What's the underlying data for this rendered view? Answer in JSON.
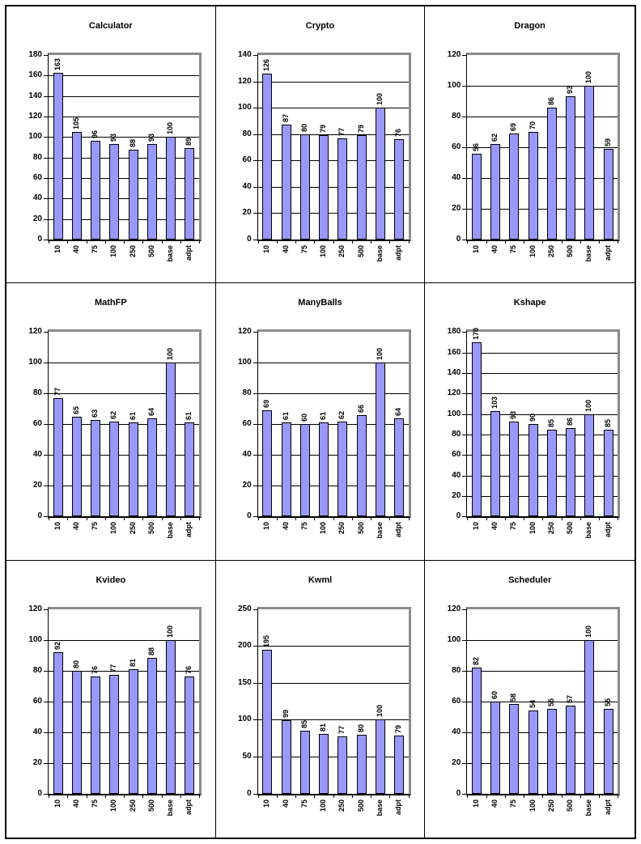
{
  "page": {
    "background": "#ffffff",
    "outer_border": "#000000"
  },
  "colors": {
    "bar_fill": "#9999FC",
    "bar_border": "#000000",
    "gridline": "#000000",
    "axis": "#000000",
    "plot_frame_shadow": "#8c8c8c",
    "text": "#000000"
  },
  "chart_data": [
    {
      "type": "bar",
      "title": "Calculator",
      "categories": [
        "10",
        "40",
        "75",
        "100",
        "250",
        "500",
        "base",
        "adpt"
      ],
      "values": [
        163,
        105,
        96,
        93,
        88,
        93,
        100,
        89
      ],
      "ymax": 180,
      "ystep": 20,
      "yticks": [
        0,
        20,
        40,
        60,
        80,
        100,
        120,
        140,
        160,
        180
      ],
      "grid": true,
      "legend": false
    },
    {
      "type": "bar",
      "title": "Crypto",
      "categories": [
        "10",
        "40",
        "75",
        "100",
        "250",
        "500",
        "base",
        "adpt"
      ],
      "values": [
        126,
        87,
        80,
        79,
        77,
        79,
        100,
        76
      ],
      "ymax": 140,
      "ystep": 20,
      "yticks": [
        0,
        20,
        40,
        60,
        80,
        100,
        120,
        140
      ],
      "grid": true,
      "legend": false
    },
    {
      "type": "bar",
      "title": "Dragon",
      "categories": [
        "10",
        "40",
        "75",
        "100",
        "250",
        "500",
        "base",
        "adpt"
      ],
      "values": [
        56,
        62,
        69,
        70,
        86,
        93,
        100,
        59
      ],
      "ymax": 120,
      "ystep": 20,
      "yticks": [
        0,
        20,
        40,
        60,
        80,
        100,
        120
      ],
      "grid": true,
      "legend": false
    },
    {
      "type": "bar",
      "title": "MathFP",
      "categories": [
        "10",
        "40",
        "75",
        "100",
        "250",
        "500",
        "base",
        "adpt"
      ],
      "values": [
        77,
        65,
        63,
        62,
        61,
        64,
        100,
        61
      ],
      "ymax": 120,
      "ystep": 20,
      "yticks": [
        0,
        20,
        40,
        60,
        80,
        100,
        120
      ],
      "grid": true,
      "legend": false
    },
    {
      "type": "bar",
      "title": "ManyBalls",
      "categories": [
        "10",
        "40",
        "75",
        "100",
        "250",
        "500",
        "base",
        "adpt"
      ],
      "values": [
        69,
        61,
        60,
        61,
        62,
        66,
        100,
        64
      ],
      "ymax": 120,
      "ystep": 20,
      "yticks": [
        0,
        20,
        40,
        60,
        80,
        100,
        120
      ],
      "grid": true,
      "legend": false
    },
    {
      "type": "bar",
      "title": "Kshape",
      "categories": [
        "10",
        "40",
        "75",
        "100",
        "250",
        "500",
        "base",
        "adpt"
      ],
      "values": [
        170,
        103,
        93,
        90,
        85,
        86,
        100,
        85
      ],
      "ymax": 180,
      "ystep": 20,
      "yticks": [
        0,
        20,
        40,
        60,
        80,
        100,
        120,
        140,
        160,
        180
      ],
      "grid": true,
      "legend": false
    },
    {
      "type": "bar",
      "title": "Kvideo",
      "categories": [
        "10",
        "40",
        "75",
        "100",
        "250",
        "500",
        "base",
        "adpt"
      ],
      "values": [
        92,
        80,
        76,
        77,
        81,
        88,
        100,
        76
      ],
      "ymax": 120,
      "ystep": 20,
      "yticks": [
        0,
        20,
        40,
        60,
        80,
        100,
        120
      ],
      "grid": true,
      "legend": false
    },
    {
      "type": "bar",
      "title": "Kwml",
      "categories": [
        "10",
        "40",
        "75",
        "100",
        "250",
        "500",
        "base",
        "adpt"
      ],
      "values": [
        195,
        99,
        85,
        81,
        77,
        80,
        100,
        79
      ],
      "ymax": 250,
      "ystep": 50,
      "yticks": [
        0,
        50,
        100,
        150,
        200,
        250
      ],
      "grid": true,
      "legend": false
    },
    {
      "type": "bar",
      "title": "Scheduler",
      "categories": [
        "10",
        "40",
        "75",
        "100",
        "250",
        "500",
        "base",
        "adpt"
      ],
      "values": [
        82,
        60,
        58,
        54,
        55,
        57,
        100,
        55
      ],
      "ymax": 120,
      "ystep": 20,
      "yticks": [
        0,
        20,
        40,
        60,
        80,
        100,
        120
      ],
      "grid": true,
      "legend": false
    }
  ]
}
